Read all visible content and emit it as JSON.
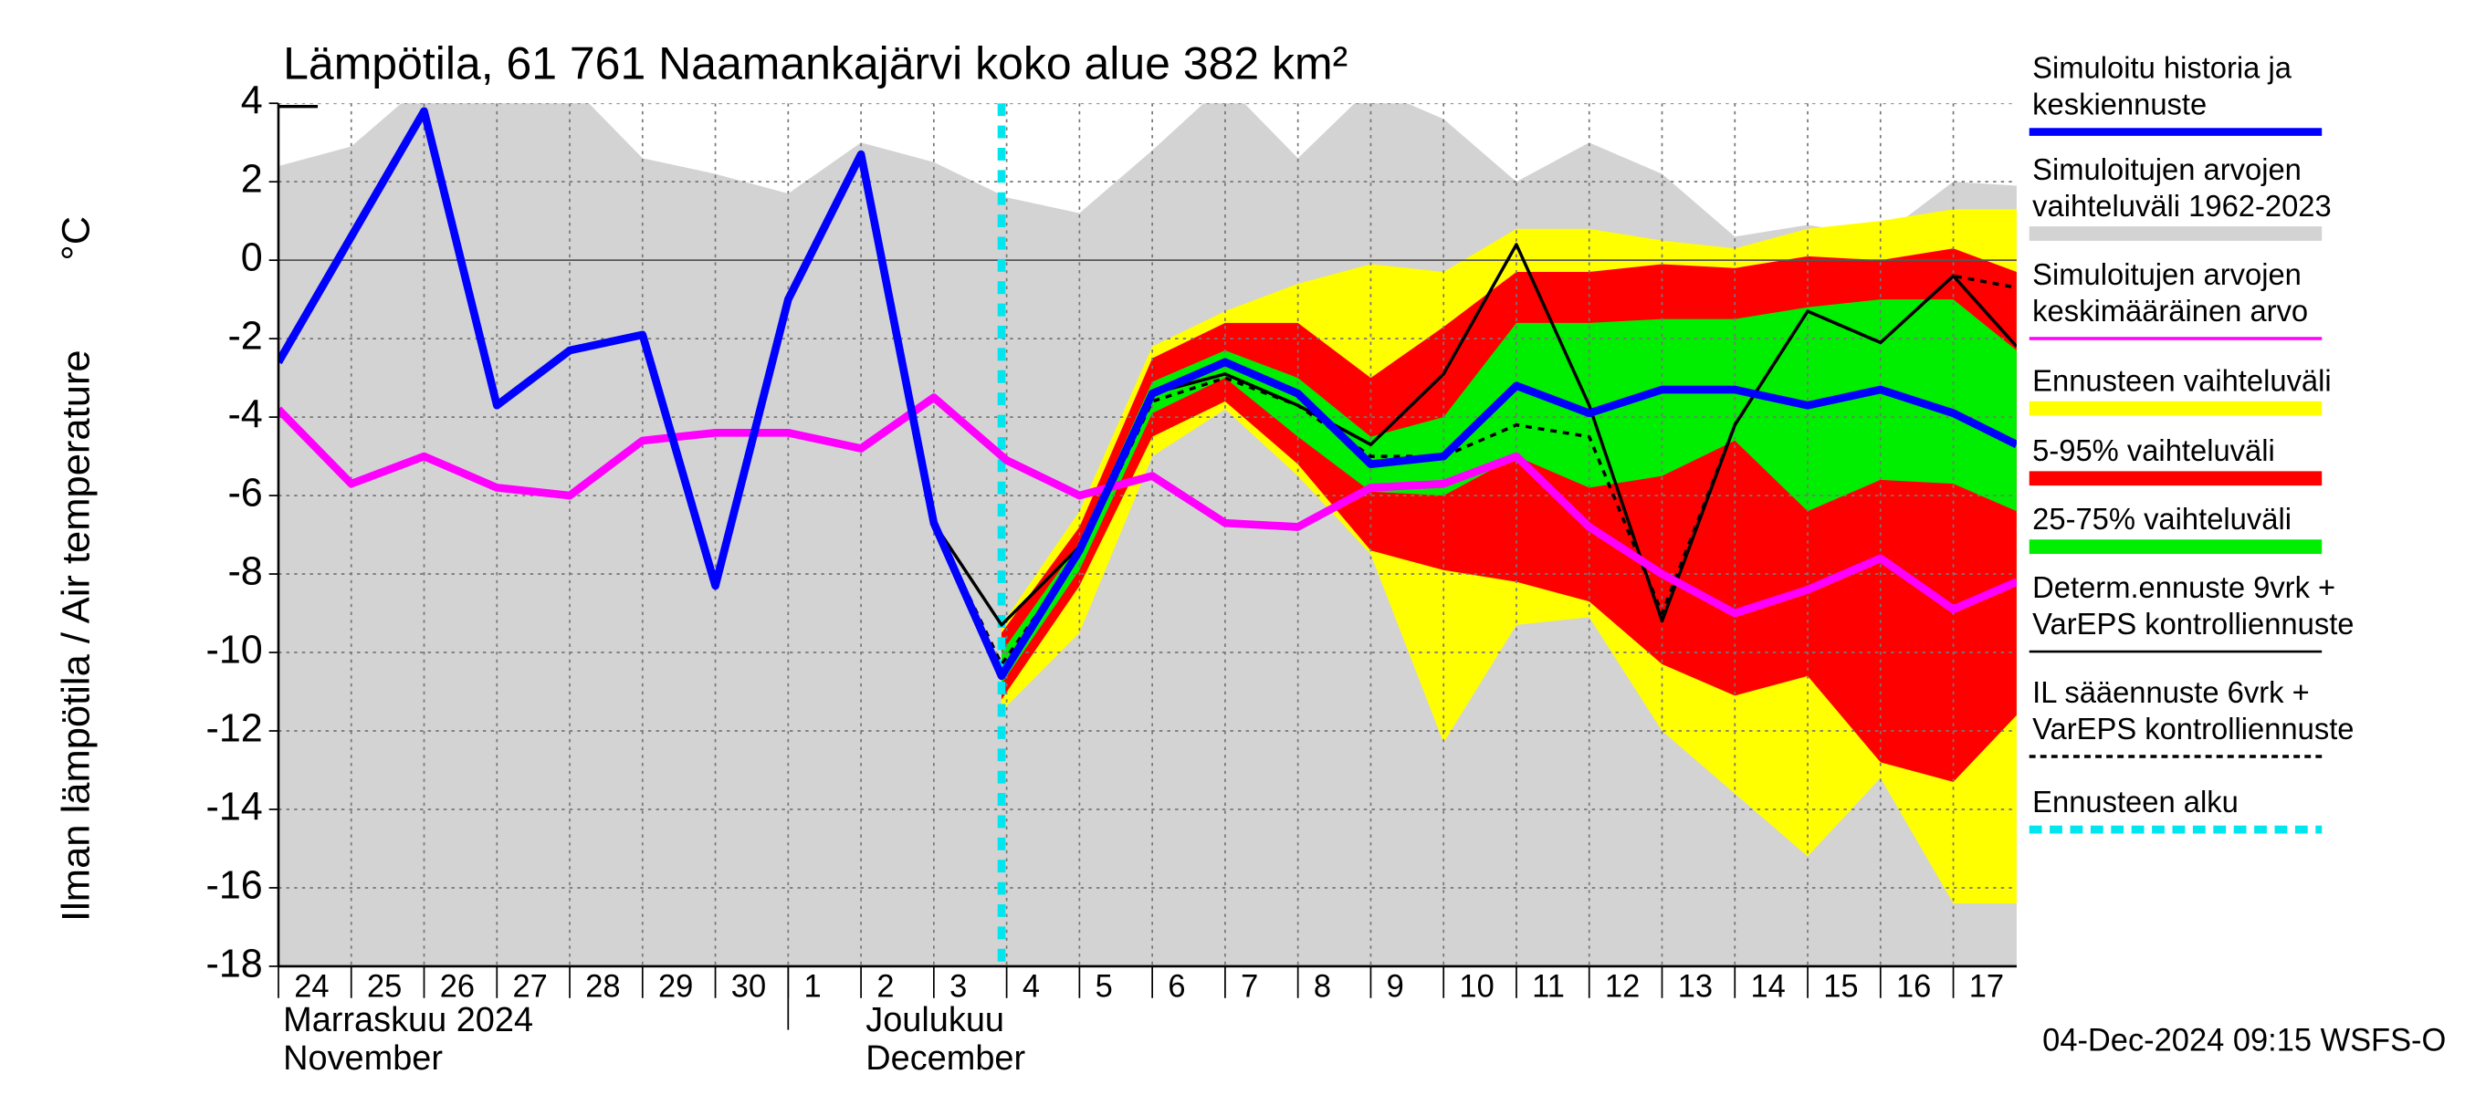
{
  "chart_data": {
    "type": "line",
    "title": "Lämpötila, 61 761 Naamankajärvi koko alue 382 km²",
    "y_label": "Ilman lämpötila / Air temperature",
    "y_unit": "°C",
    "month_labels": [
      {
        "x": 0,
        "lines": [
          "Marraskuu 2024",
          "November"
        ]
      },
      {
        "x": 8,
        "lines": [
          "Joulukuu",
          "December"
        ]
      }
    ],
    "footer": "04-Dec-2024 09:15 WSFS-O",
    "xlim": [
      0,
      23.87
    ],
    "ylim": [
      -18,
      4
    ],
    "yticks": [
      -18,
      -16,
      -14,
      -12,
      -10,
      -8,
      -6,
      -4,
      -2,
      0,
      2,
      4
    ],
    "xticks": [
      {
        "value": 0,
        "label": "24"
      },
      {
        "value": 1,
        "label": "25"
      },
      {
        "value": 2,
        "label": "26"
      },
      {
        "value": 3,
        "label": "27"
      },
      {
        "value": 4,
        "label": "28"
      },
      {
        "value": 5,
        "label": "29"
      },
      {
        "value": 6,
        "label": "30"
      },
      {
        "value": 7,
        "label": "1"
      },
      {
        "value": 8,
        "label": "2"
      },
      {
        "value": 9,
        "label": "3"
      },
      {
        "value": 10,
        "label": "4"
      },
      {
        "value": 11,
        "label": "5"
      },
      {
        "value": 12,
        "label": "6"
      },
      {
        "value": 13,
        "label": "7"
      },
      {
        "value": 14,
        "label": "8"
      },
      {
        "value": 15,
        "label": "9"
      },
      {
        "value": 16,
        "label": "10"
      },
      {
        "value": 17,
        "label": "11"
      },
      {
        "value": 18,
        "label": "12"
      },
      {
        "value": 19,
        "label": "13"
      },
      {
        "value": 20,
        "label": "14"
      },
      {
        "value": 21,
        "label": "15"
      },
      {
        "value": 22,
        "label": "16"
      },
      {
        "value": 23,
        "label": "17"
      }
    ],
    "grid": true,
    "series": [
      {
        "name": [
          "Simuloitu historia ja",
          "keskiennuste"
        ],
        "kind": "line",
        "color": "#0000ff",
        "x": [
          0,
          1,
          2,
          3,
          4,
          5,
          6,
          7,
          8,
          9,
          9.93,
          11,
          12,
          13,
          14,
          15,
          16,
          17,
          18,
          19,
          20,
          21,
          22,
          23,
          23.87
        ],
        "values": [
          -2.6,
          0.6,
          3.8,
          -3.7,
          -2.3,
          -1.9,
          -8.3,
          -1.0,
          2.7,
          -6.7,
          -10.6,
          -7.4,
          -3.4,
          -2.6,
          -3.4,
          -5.2,
          -5.0,
          -3.2,
          -3.9,
          -3.3,
          -3.3,
          -3.7,
          -3.3,
          -3.9,
          -4.7
        ]
      },
      {
        "name": [
          "Simuloitujen arvojen",
          "vaihteluväli 1962-2023"
        ],
        "kind": "band",
        "color": "#d3d3d3",
        "x": [
          0,
          1,
          2,
          3,
          4,
          5,
          6,
          7,
          8,
          9,
          10,
          11,
          12,
          13,
          14,
          15,
          16,
          17,
          18,
          19,
          20,
          21,
          22,
          23,
          23.87
        ],
        "upper": [
          2.4,
          2.9,
          4.5,
          4.5,
          4.5,
          2.6,
          2.2,
          1.7,
          3.0,
          2.5,
          1.6,
          1.2,
          2.8,
          4.5,
          2.6,
          4.4,
          3.6,
          2.0,
          3.0,
          2.2,
          0.6,
          0.9,
          0.6,
          2.0,
          1.9
        ],
        "lower": [
          -18,
          -18,
          -18,
          -18,
          -18,
          -18,
          -18,
          -18,
          -18,
          -18,
          -18,
          -18,
          -18,
          -18,
          -18,
          -18,
          -18,
          -18,
          -18,
          -18,
          -18,
          -18,
          -18,
          -18,
          -18
        ]
      },
      {
        "name": [
          "Simuloitujen arvojen",
          "keskimääräinen arvo"
        ],
        "kind": "line",
        "color": "#ff00ff",
        "x": [
          0,
          1,
          2,
          3,
          4,
          5,
          6,
          7,
          8,
          9,
          10,
          11,
          12,
          13,
          14,
          15,
          16,
          17,
          18,
          19,
          20,
          21,
          22,
          23,
          23.87
        ],
        "values": [
          -3.8,
          -5.7,
          -5.0,
          -5.8,
          -6.0,
          -4.6,
          -4.4,
          -4.4,
          -4.8,
          -3.5,
          -5.1,
          -6.0,
          -5.5,
          -6.7,
          -6.8,
          -5.8,
          -5.7,
          -5.0,
          -6.8,
          -8.0,
          -9.0,
          -8.4,
          -7.6,
          -8.9,
          -8.2
        ]
      },
      {
        "name": [
          "Ennusteen vaihteluväli"
        ],
        "kind": "band",
        "color": "#ffff00",
        "x": [
          9.93,
          11,
          12,
          13,
          14,
          15,
          16,
          17,
          18,
          19,
          20,
          21,
          22,
          23,
          23.87
        ],
        "upper": [
          -9.3,
          -6.4,
          -2.2,
          -1.3,
          -0.6,
          -0.1,
          -0.3,
          0.8,
          0.8,
          0.5,
          0.3,
          0.8,
          1.0,
          1.3,
          1.3
        ],
        "lower": [
          -11.5,
          -9.5,
          -5.0,
          -3.8,
          -5.5,
          -7.5,
          -12.3,
          -9.3,
          -9.1,
          -12.0,
          -13.6,
          -15.2,
          -13.2,
          -16.4,
          -16.4
        ]
      },
      {
        "name": [
          "5-95% vaihteluväli"
        ],
        "kind": "band",
        "color": "#ff0000",
        "x": [
          9.93,
          11,
          12,
          13,
          14,
          15,
          16,
          17,
          18,
          19,
          20,
          21,
          22,
          23,
          23.87
        ],
        "upper": [
          -9.5,
          -6.8,
          -2.5,
          -1.6,
          -1.6,
          -3.0,
          -1.7,
          -0.3,
          -0.3,
          -0.1,
          -0.2,
          0.1,
          0.0,
          0.3,
          -0.3
        ],
        "lower": [
          -11.2,
          -8.3,
          -4.5,
          -3.6,
          -5.2,
          -7.4,
          -7.9,
          -8.2,
          -8.7,
          -10.3,
          -11.1,
          -10.6,
          -12.8,
          -13.3,
          -11.6
        ]
      },
      {
        "name": [
          "25-75% vaihteluväli"
        ],
        "kind": "band",
        "color": "#00ee00",
        "x": [
          9.93,
          11,
          12,
          13,
          14,
          15,
          16,
          17,
          18,
          19,
          20,
          21,
          22,
          23,
          23.87
        ],
        "upper": [
          -10.0,
          -7.2,
          -3.1,
          -2.3,
          -3.0,
          -4.5,
          -4.0,
          -1.6,
          -1.6,
          -1.5,
          -1.5,
          -1.2,
          -1.0,
          -1.0,
          -2.3
        ],
        "lower": [
          -10.8,
          -7.9,
          -3.9,
          -3.0,
          -4.5,
          -5.9,
          -6.0,
          -5.0,
          -5.8,
          -5.5,
          -4.6,
          -6.4,
          -5.6,
          -5.7,
          -6.4
        ]
      },
      {
        "name": [
          "Determ.ennuste 9vrk +",
          "VarEPS kontrolliennuste"
        ],
        "kind": "thin",
        "color": "#000000",
        "x": [
          8,
          9,
          9.93,
          11,
          12,
          13,
          14,
          15,
          16,
          17,
          18,
          19,
          20,
          21,
          22,
          23,
          23.87
        ],
        "values": [
          2.7,
          -6.7,
          -9.3,
          -7.3,
          -3.4,
          -2.9,
          -3.7,
          -4.7,
          -2.9,
          0.4,
          -3.7,
          -9.2,
          -4.2,
          -1.3,
          -2.1,
          -0.4,
          -2.2
        ]
      },
      {
        "name": [
          "IL sääennuste 6vrk  +",
          "  VarEPS kontrolliennuste"
        ],
        "kind": "dashed",
        "color": "#000000",
        "x": [
          8,
          9,
          9.93,
          11,
          12,
          13,
          14,
          15,
          16,
          17,
          18,
          19,
          20,
          21,
          22,
          23,
          23.87
        ],
        "values": [
          2.7,
          -6.7,
          -10.3,
          -7.5,
          -3.6,
          -3.0,
          -3.7,
          -5.0,
          -5.0,
          -4.2,
          -4.5,
          -9.0,
          -4.2,
          -1.3,
          -2.1,
          -0.4,
          -0.7
        ]
      },
      {
        "name": [
          "Ennusteen alku"
        ],
        "kind": "vline",
        "color": "#00e5ee",
        "x": 9.93
      }
    ]
  }
}
